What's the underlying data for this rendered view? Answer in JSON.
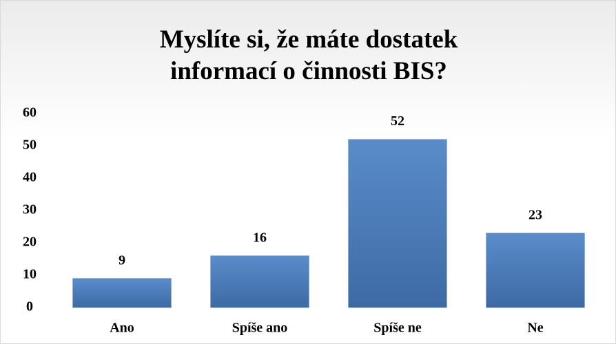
{
  "chart_data": {
    "type": "bar",
    "title": "Myslíte si, že máte dostatek informací o činnosti BIS?",
    "categories": [
      "Ano",
      "Spíše ano",
      "Spíše ne",
      "Ne"
    ],
    "values": [
      9,
      16,
      52,
      23
    ],
    "color": "#4f81bd",
    "ylim": [
      0,
      60
    ],
    "yticks": [
      0,
      10,
      20,
      30,
      40,
      50,
      60
    ],
    "grid": false
  }
}
